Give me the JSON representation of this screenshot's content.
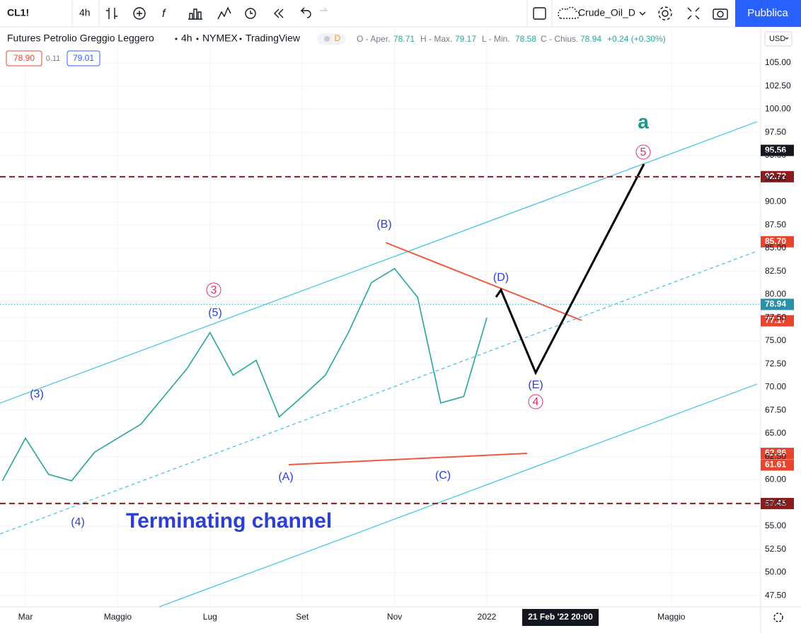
{
  "toolbar": {
    "symbol": "CL1!",
    "interval": "4h",
    "layout_name": "Crude_Oil_D",
    "publish": "Pubblica"
  },
  "legend": {
    "instrument": "Futures Petrolio Greggio Leggero",
    "interval": "4h",
    "exchange": "NYMEX",
    "source": "TradingView",
    "badge": "D",
    "open_label": "O - Aper.",
    "open": "78.71",
    "high_label": "H - Max.",
    "high": "79.17",
    "low_label": "L - Min.",
    "low": "78.58",
    "close_label": "C - Chius.",
    "close": "78.94",
    "change": "+0.24 (+0.30%)",
    "bid": "78.90",
    "spread": "0.11",
    "ask": "79.01"
  },
  "currency": "USD",
  "crosshair_time": "21 Feb '22 20:00",
  "annotations": {
    "w3_minor": "(3)",
    "w4_minor": "(4)",
    "w3_circle": "3",
    "w5_minor": "(5)",
    "wB": "(B)",
    "wA": "(A)",
    "wC": "(C)",
    "wD": "(D)",
    "wE": "(E)",
    "w4_circle": "4",
    "w5_circle": "5",
    "wave_a": "a",
    "channel": "Terminating channel"
  },
  "chart_data": {
    "type": "line",
    "categories": [
      null,
      "Mar",
      null,
      null,
      null,
      "Maggio",
      null,
      null,
      null,
      "Lug",
      null,
      null,
      null,
      "Set",
      null,
      null,
      null,
      "Nov",
      null,
      null,
      null,
      "2022",
      null,
      null,
      null,
      null,
      null,
      null,
      null,
      "Maggio",
      null
    ],
    "series": [
      {
        "name": "CL1!",
        "color": "#26a69a",
        "values": [
          59.9,
          64.5,
          60.6,
          59.9,
          63,
          64.5,
          66,
          69,
          72,
          75.9,
          71.3,
          72.9,
          66.8,
          69,
          71.3,
          75.9,
          81.3,
          82.8,
          79.7,
          68.3,
          69,
          77.5,
          null,
          null,
          null,
          null,
          null,
          null,
          null,
          null,
          null
        ]
      }
    ],
    "ylim": [
      46.3,
      108.89
    ],
    "yticks": [
      {
        "value": 47.5,
        "label": "47.50"
      },
      {
        "value": 50,
        "label": "50.00"
      },
      {
        "value": 52.5,
        "label": "52.50"
      },
      {
        "value": 55,
        "label": "55.00"
      },
      {
        "value": 57.5,
        "label": "57.50"
      },
      {
        "value": 60,
        "label": "60.00"
      },
      {
        "value": 62.5,
        "label": "62.50"
      },
      {
        "value": 65,
        "label": "65.00"
      },
      {
        "value": 67.5,
        "label": "67.50"
      },
      {
        "value": 70,
        "label": "70.00"
      },
      {
        "value": 72.5,
        "label": "72.50"
      },
      {
        "value": 75,
        "label": "75.00"
      },
      {
        "value": 77.5,
        "label": "77.50"
      },
      {
        "value": 80,
        "label": "80.00"
      },
      {
        "value": 82.5,
        "label": "82.50"
      },
      {
        "value": 85,
        "label": "85.00"
      },
      {
        "value": 87.5,
        "label": "87.50"
      },
      {
        "value": 90,
        "label": "90.00"
      },
      {
        "value": 92.5,
        "label": "92.50"
      },
      {
        "value": 95,
        "label": "95.00"
      },
      {
        "value": 97.5,
        "label": "97.50"
      },
      {
        "value": 100,
        "label": "100.00"
      },
      {
        "value": 102.5,
        "label": "102.50"
      },
      {
        "value": 105,
        "label": "105.00"
      }
    ],
    "price_labels": [
      {
        "value": 95.56,
        "color": "#131722"
      },
      {
        "value": 92.72,
        "color": "#8e1b1b"
      },
      {
        "value": 85.7,
        "label": "85.70",
        "color": "#e8452e"
      },
      {
        "value": 78.94,
        "color": "#2a8fa8"
      },
      {
        "value": 77.17,
        "color": "#e8452e"
      },
      {
        "value": 62.86,
        "color": "#e8452e"
      },
      {
        "value": 61.61,
        "color": "#e8452e"
      },
      {
        "value": 57.45,
        "color": "#8e1b1b"
      }
    ]
  }
}
